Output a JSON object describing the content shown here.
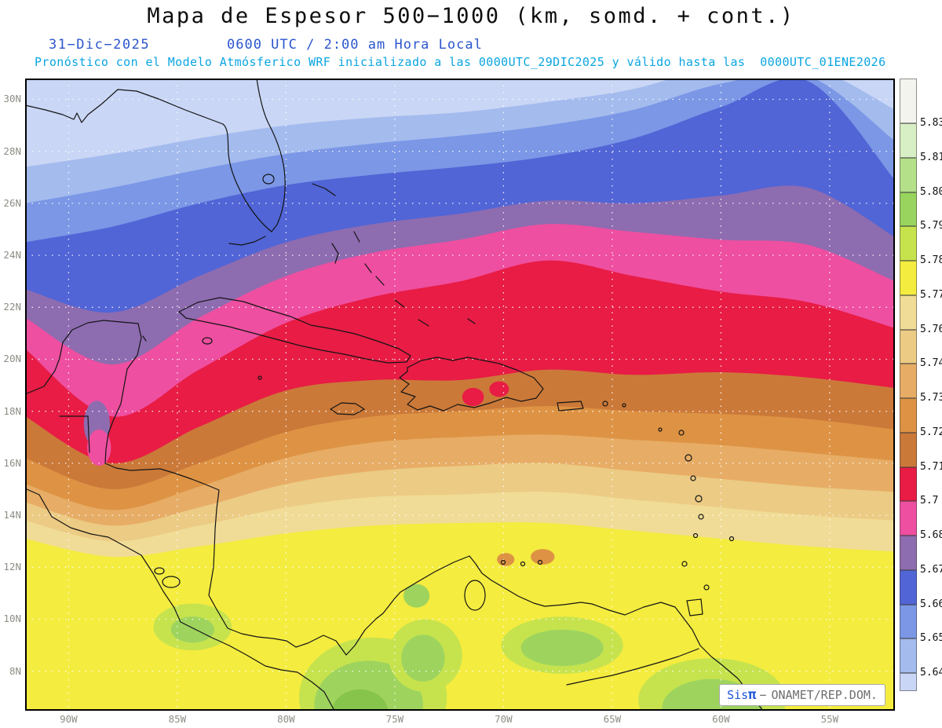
{
  "title": "Mapa de Espesor 500−1000 (km, somd. + cont.)",
  "subtitle": {
    "date": "31−Dic−2025",
    "time": "0600 UTC / 2:00 am Hora Local",
    "forecast": "Pronóstico con el Modelo Atmósferico WRF inicializado a las 0000UTC_29DIC2025 y válido hasta las  0000UTC_01ENE2026"
  },
  "axes": {
    "lat_ticks": [
      "30N",
      "28N",
      "26N",
      "24N",
      "22N",
      "20N",
      "18N",
      "16N",
      "14N",
      "12N",
      "10N",
      "8N"
    ],
    "lon_ticks": [
      "90W",
      "85W",
      "80W",
      "75W",
      "70W",
      "65W",
      "60W",
      "55W"
    ]
  },
  "colorbar": {
    "labels": [
      "5.831",
      "5.819",
      "5.807",
      "5.795",
      "5.783",
      "5.772",
      "5.76",
      "5.748",
      "5.736",
      "5.724",
      "5.712",
      "5.7",
      "5.688",
      "5.676",
      "5.664",
      "5.652",
      "5.64"
    ],
    "colors_top_to_bottom": [
      "#f4f4ee",
      "#d8eec4",
      "#b4e08a",
      "#98d45e",
      "#c6e34e",
      "#f4ec3f",
      "#f0dc96",
      "#eccb84",
      "#e7ad66",
      "#de9344",
      "#cb7939",
      "#e81c45",
      "#ee4fa0",
      "#8e6cb0",
      "#5165d6",
      "#7b97e6",
      "#a4bbee",
      "#c9d6f5"
    ]
  },
  "branding": {
    "brand": "Sis",
    "pi": "π",
    "sep": "−",
    "org": "ONAMET/REP.DOM."
  },
  "chart_data": {
    "type": "filled_contour_map",
    "variable": "Espesor 500−1000 (km)",
    "model": "WRF",
    "extent": {
      "lon_min_W": 92,
      "lon_max_W": 52,
      "lat_max_N": 30.8,
      "lat_min_N": 6.48
    },
    "contour_levels": [
      5.64,
      5.652,
      5.664,
      5.676,
      5.688,
      5.7,
      5.712,
      5.724,
      5.736,
      5.748,
      5.76,
      5.772,
      5.783,
      5.795,
      5.807,
      5.819,
      5.831
    ],
    "lons_W": [
      92,
      88,
      84,
      80,
      76,
      72,
      68,
      64,
      60,
      56,
      52
    ],
    "bands": [
      {
        "level_range": "<5.64",
        "color": "#c9d6f5",
        "north_edge_lat": null
      },
      {
        "level_range": "5.64-5.652",
        "color": "#a4bbee",
        "north_edge_lat": [
          27.4,
          27.9,
          28.5,
          29.0,
          29.3,
          29.5,
          29.9,
          30.4,
          31.3,
          31.3,
          29.6
        ]
      },
      {
        "level_range": "5.652-5.664",
        "color": "#7b97e6",
        "north_edge_lat": [
          26.0,
          26.6,
          27.3,
          27.9,
          28.3,
          28.6,
          29.0,
          29.6,
          30.6,
          30.9,
          28.4
        ]
      },
      {
        "level_range": "5.664-5.676",
        "color": "#5165d6",
        "north_edge_lat": [
          24.5,
          25.1,
          26.0,
          26.7,
          27.1,
          27.4,
          27.8,
          28.5,
          29.7,
          30.7,
          26.9
        ]
      },
      {
        "level_range": "5.676-5.688",
        "color": "#8e6cb0",
        "north_edge_lat": [
          22.7,
          21.8,
          23.2,
          24.5,
          25.2,
          25.6,
          26.1,
          26.0,
          26.3,
          26.6,
          24.7
        ]
      },
      {
        "level_range": "5.688-5.7",
        "color": "#ee4fa0",
        "north_edge_lat": [
          21.6,
          19.8,
          21.6,
          23.2,
          24.1,
          24.6,
          25.2,
          24.9,
          24.6,
          24.4,
          23.0
        ]
      },
      {
        "level_range": "5.7-5.712",
        "color": "#e81c45",
        "north_edge_lat": [
          20.4,
          17.8,
          19.6,
          21.4,
          22.4,
          23.0,
          23.8,
          23.2,
          22.6,
          22.2,
          21.2
        ]
      },
      {
        "level_range": "5.712-5.724",
        "color": "#cb7939",
        "north_edge_lat": [
          17.8,
          16.0,
          17.4,
          18.8,
          19.2,
          19.2,
          19.6,
          19.4,
          19.5,
          19.3,
          18.9
        ]
      },
      {
        "level_range": "5.724-5.736",
        "color": "#de9344",
        "north_edge_lat": [
          16.2,
          15.0,
          16.0,
          17.2,
          17.8,
          18.0,
          18.2,
          18.0,
          17.9,
          17.7,
          17.3
        ]
      },
      {
        "level_range": "5.736-5.748",
        "color": "#e7ad66",
        "north_edge_lat": [
          15.2,
          14.2,
          15.1,
          16.2,
          16.8,
          17.0,
          17.1,
          16.9,
          16.7,
          16.4,
          16.1
        ]
      },
      {
        "level_range": "5.748-5.76",
        "color": "#eccb84",
        "north_edge_lat": [
          14.5,
          13.6,
          14.3,
          15.2,
          15.7,
          15.9,
          16.0,
          15.7,
          15.4,
          15.1,
          14.9
        ]
      },
      {
        "level_range": "5.76-5.772",
        "color": "#f0dc96",
        "north_edge_lat": [
          13.8,
          13.0,
          13.6,
          14.3,
          14.7,
          14.8,
          14.9,
          14.6,
          14.3,
          14.0,
          13.8
        ]
      },
      {
        "level_range": "5.772-5.783",
        "color": "#f4ec3f",
        "north_edge_lat": [
          13.1,
          12.4,
          12.8,
          13.3,
          13.6,
          13.7,
          13.7,
          13.4,
          13.1,
          12.8,
          12.6
        ]
      }
    ],
    "patches": [
      {
        "lon_W": 76.0,
        "lat_N": 7.0,
        "rx_deg": 3.4,
        "ry_deg": 2.3,
        "color": "#c6e34e"
      },
      {
        "lon_W": 76.2,
        "lat_N": 6.7,
        "rx_deg": 2.5,
        "ry_deg": 1.7,
        "color": "#9ed45e"
      },
      {
        "lon_W": 76.6,
        "lat_N": 6.4,
        "rx_deg": 1.3,
        "ry_deg": 0.9,
        "color": "#86c44c"
      },
      {
        "lon_W": 73.6,
        "lat_N": 8.6,
        "rx_deg": 1.7,
        "ry_deg": 1.4,
        "color": "#c6e34e"
      },
      {
        "lon_W": 73.7,
        "lat_N": 8.5,
        "rx_deg": 1.0,
        "ry_deg": 0.9,
        "color": "#9ed45e"
      },
      {
        "lon_W": 67.3,
        "lat_N": 9.0,
        "rx_deg": 2.8,
        "ry_deg": 1.1,
        "color": "#c6e34e"
      },
      {
        "lon_W": 67.3,
        "lat_N": 8.9,
        "rx_deg": 1.9,
        "ry_deg": 0.7,
        "color": "#9ed45e"
      },
      {
        "lon_W": 60.4,
        "lat_N": 6.9,
        "rx_deg": 3.4,
        "ry_deg": 1.6,
        "color": "#c6e34e"
      },
      {
        "lon_W": 60.4,
        "lat_N": 6.6,
        "rx_deg": 2.3,
        "ry_deg": 1.1,
        "color": "#9ed45e"
      },
      {
        "lon_W": 84.3,
        "lat_N": 9.7,
        "rx_deg": 1.8,
        "ry_deg": 0.9,
        "color": "#c6e34e"
      },
      {
        "lon_W": 84.3,
        "lat_N": 9.6,
        "rx_deg": 1.0,
        "ry_deg": 0.5,
        "color": "#9ed45e"
      },
      {
        "lon_W": 74.0,
        "lat_N": 10.9,
        "rx_deg": 0.6,
        "ry_deg": 0.45,
        "color": "#9ed45e"
      },
      {
        "lon_W": 68.2,
        "lat_N": 12.4,
        "rx_deg": 0.55,
        "ry_deg": 0.3,
        "color": "#de9344"
      },
      {
        "lon_W": 69.9,
        "lat_N": 12.3,
        "rx_deg": 0.4,
        "ry_deg": 0.25,
        "color": "#de9344"
      },
      {
        "lon_W": 71.4,
        "lat_N": 18.55,
        "rx_deg": 0.5,
        "ry_deg": 0.35,
        "color": "#e81c45"
      },
      {
        "lon_W": 70.2,
        "lat_N": 18.85,
        "rx_deg": 0.45,
        "ry_deg": 0.3,
        "color": "#e81c45"
      },
      {
        "lon_W": 88.7,
        "lat_N": 17.5,
        "rx_deg": 0.6,
        "ry_deg": 0.9,
        "color": "#8e6cb0"
      },
      {
        "lon_W": 88.6,
        "lat_N": 16.6,
        "rx_deg": 0.55,
        "ry_deg": 0.7,
        "color": "#ee4fa0"
      }
    ]
  }
}
